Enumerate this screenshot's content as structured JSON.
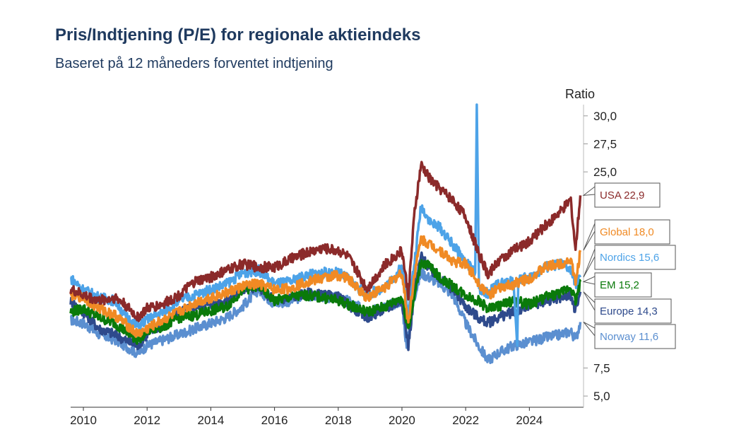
{
  "title": "Pris/Indtjening (P/E) for regionale aktieindeks",
  "subtitle": "Baseret på 12 måneders forventet indtjening",
  "chart_data": {
    "type": "line",
    "ylabel": "Ratio",
    "xlabel": "",
    "ylim": [
      4,
      31
    ],
    "xlim": [
      2009.6,
      2025.7
    ],
    "y_ticks": [
      "30,0",
      "27,5",
      "25,0",
      "7,5",
      "5,0"
    ],
    "y_tick_values": [
      30,
      27.5,
      25,
      7.5,
      5
    ],
    "x_ticks": [
      "2010",
      "2012",
      "2014",
      "2016",
      "2018",
      "2020",
      "2022",
      "2024"
    ],
    "x_tick_values": [
      2010,
      2012,
      2014,
      2016,
      2018,
      2020,
      2022,
      2024
    ],
    "series": [
      {
        "name": "USA",
        "end_label": "USA 22,9",
        "color": "#8b2a2a",
        "x": [
          2009.6,
          2010.0,
          2010.5,
          2011.0,
          2011.3,
          2011.7,
          2012.0,
          2012.5,
          2013.0,
          2013.5,
          2014.0,
          2014.5,
          2015.0,
          2015.5,
          2016.0,
          2016.5,
          2017.0,
          2017.5,
          2018.0,
          2018.3,
          2018.9,
          2019.5,
          2020.0,
          2020.2,
          2020.4,
          2020.6,
          2020.9,
          2021.2,
          2021.6,
          2022.0,
          2022.4,
          2022.7,
          2023.0,
          2023.5,
          2024.0,
          2024.5,
          2025.0,
          2025.3,
          2025.45,
          2025.6
        ],
        "y": [
          14.5,
          14.0,
          13.5,
          13.8,
          13.2,
          12.0,
          12.8,
          13.2,
          14.0,
          15.2,
          15.6,
          16.2,
          16.8,
          16.5,
          16.5,
          17.2,
          17.8,
          18.2,
          18.0,
          17.5,
          14.6,
          16.8,
          18.0,
          14.0,
          21.5,
          25.6,
          24.3,
          23.5,
          22.5,
          21.0,
          17.8,
          15.8,
          17.0,
          18.0,
          18.8,
          20.2,
          21.5,
          22.5,
          18.0,
          22.9
        ]
      },
      {
        "name": "Global",
        "end_label": "Global 18,0",
        "color": "#f08a24",
        "x": [
          2009.6,
          2010.0,
          2010.5,
          2011.0,
          2011.3,
          2011.7,
          2012.0,
          2012.5,
          2013.0,
          2013.5,
          2014.0,
          2014.5,
          2015.0,
          2015.5,
          2016.0,
          2016.5,
          2017.0,
          2017.5,
          2018.0,
          2018.3,
          2018.9,
          2019.5,
          2020.0,
          2020.2,
          2020.4,
          2020.6,
          2020.9,
          2021.2,
          2021.6,
          2022.0,
          2022.4,
          2022.7,
          2023.0,
          2023.5,
          2024.0,
          2024.5,
          2025.0,
          2025.3,
          2025.45,
          2025.6
        ],
        "y": [
          14.0,
          13.8,
          12.8,
          12.2,
          11.5,
          10.5,
          11.0,
          11.8,
          12.5,
          13.3,
          13.8,
          14.2,
          14.8,
          15.0,
          14.5,
          14.6,
          15.2,
          15.5,
          15.8,
          15.5,
          13.8,
          14.8,
          16.0,
          11.5,
          16.0,
          19.0,
          18.5,
          18.0,
          17.0,
          16.8,
          15.2,
          14.0,
          14.5,
          15.0,
          15.5,
          16.5,
          16.8,
          17.2,
          15.0,
          18.0
        ]
      },
      {
        "name": "Nordics",
        "end_label": "Nordics 15,6",
        "color": "#4da3e8",
        "x": [
          2009.6,
          2010.0,
          2010.5,
          2011.0,
          2011.3,
          2011.7,
          2012.0,
          2012.5,
          2013.0,
          2013.5,
          2014.0,
          2014.5,
          2015.0,
          2015.5,
          2016.0,
          2016.5,
          2017.0,
          2017.5,
          2018.0,
          2018.3,
          2018.9,
          2019.5,
          2020.0,
          2020.2,
          2020.4,
          2020.6,
          2020.9,
          2021.2,
          2021.6,
          2022.0,
          2022.3,
          2022.35,
          2022.42,
          2022.7,
          2023.0,
          2023.5,
          2023.62,
          2023.65,
          2024.0,
          2024.5,
          2025.0,
          2025.3,
          2025.45,
          2025.6
        ],
        "y": [
          15.5,
          14.5,
          13.8,
          13.5,
          12.2,
          11.2,
          11.8,
          12.5,
          13.5,
          14.0,
          14.5,
          15.0,
          16.0,
          16.2,
          15.0,
          15.2,
          15.8,
          16.0,
          16.0,
          15.5,
          14.0,
          14.8,
          16.5,
          12.5,
          17.0,
          22.0,
          20.5,
          20.0,
          18.5,
          17.0,
          16.0,
          31.0,
          14.5,
          14.2,
          15.0,
          15.2,
          9.5,
          15.5,
          15.5,
          16.5,
          16.8,
          16.2,
          15.0,
          15.6
        ]
      },
      {
        "name": "EM",
        "end_label": "EM 15,2",
        "color": "#0a7a0a",
        "x": [
          2009.6,
          2010.0,
          2010.5,
          2011.0,
          2011.3,
          2011.7,
          2012.0,
          2012.5,
          2013.0,
          2013.5,
          2014.0,
          2014.5,
          2015.0,
          2015.5,
          2016.0,
          2016.5,
          2017.0,
          2017.5,
          2018.0,
          2018.3,
          2018.9,
          2019.5,
          2020.0,
          2020.2,
          2020.4,
          2020.6,
          2020.9,
          2021.2,
          2021.6,
          2022.0,
          2022.4,
          2022.7,
          2023.0,
          2023.5,
          2024.0,
          2024.5,
          2025.0,
          2025.3,
          2025.45,
          2025.6
        ],
        "y": [
          12.5,
          12.8,
          12.0,
          11.5,
          10.8,
          10.0,
          10.8,
          11.2,
          12.0,
          12.2,
          12.6,
          13.0,
          14.5,
          14.8,
          13.5,
          13.8,
          14.0,
          13.8,
          13.5,
          13.2,
          12.5,
          13.0,
          13.8,
          11.0,
          14.0,
          17.0,
          16.5,
          15.5,
          14.8,
          14.0,
          13.5,
          12.8,
          13.0,
          13.5,
          13.2,
          13.8,
          14.2,
          14.8,
          13.5,
          15.2
        ]
      },
      {
        "name": "Europe",
        "end_label": "Europe 14,3",
        "color": "#2e4a8c",
        "x": [
          2009.6,
          2010.0,
          2010.5,
          2011.0,
          2011.3,
          2011.7,
          2012.0,
          2012.5,
          2013.0,
          2013.5,
          2014.0,
          2014.5,
          2015.0,
          2015.5,
          2016.0,
          2016.5,
          2017.0,
          2017.5,
          2018.0,
          2018.3,
          2018.9,
          2019.5,
          2020.0,
          2020.2,
          2020.4,
          2020.6,
          2020.9,
          2021.2,
          2021.6,
          2022.0,
          2022.4,
          2022.7,
          2023.0,
          2023.5,
          2024.0,
          2024.5,
          2025.0,
          2025.3,
          2025.45,
          2025.6
        ],
        "y": [
          13.5,
          12.5,
          11.0,
          10.5,
          10.0,
          9.5,
          10.5,
          11.5,
          12.5,
          13.0,
          13.2,
          13.5,
          14.5,
          14.8,
          13.5,
          13.8,
          14.2,
          14.0,
          13.8,
          13.2,
          12.0,
          12.8,
          13.5,
          9.5,
          14.5,
          17.5,
          16.2,
          15.5,
          14.5,
          13.0,
          12.0,
          11.5,
          12.0,
          12.5,
          13.0,
          13.5,
          13.8,
          14.0,
          12.5,
          14.3
        ]
      },
      {
        "name": "Norway",
        "end_label": "Norway 11,6",
        "color": "#5b8fd0",
        "x": [
          2009.6,
          2010.0,
          2010.5,
          2011.0,
          2011.3,
          2011.7,
          2012.0,
          2012.5,
          2013.0,
          2013.5,
          2014.0,
          2014.5,
          2015.0,
          2015.5,
          2016.0,
          2016.5,
          2017.0,
          2017.5,
          2018.0,
          2018.3,
          2018.9,
          2019.5,
          2020.0,
          2020.15,
          2020.3,
          2020.6,
          2020.9,
          2021.2,
          2021.6,
          2022.0,
          2022.4,
          2022.7,
          2023.0,
          2023.5,
          2024.0,
          2024.5,
          2025.0,
          2025.3,
          2025.45,
          2025.6
        ],
        "y": [
          11.8,
          11.5,
          10.5,
          10.0,
          9.5,
          8.8,
          9.5,
          10.0,
          10.5,
          11.0,
          11.5,
          12.0,
          13.0,
          14.5,
          13.2,
          13.5,
          14.0,
          13.8,
          13.8,
          13.5,
          12.5,
          13.0,
          13.5,
          9.2,
          13.0,
          16.0,
          15.5,
          15.0,
          14.0,
          11.5,
          9.5,
          8.2,
          8.8,
          9.5,
          9.8,
          10.2,
          10.5,
          10.8,
          10.0,
          11.6
        ]
      }
    ]
  }
}
